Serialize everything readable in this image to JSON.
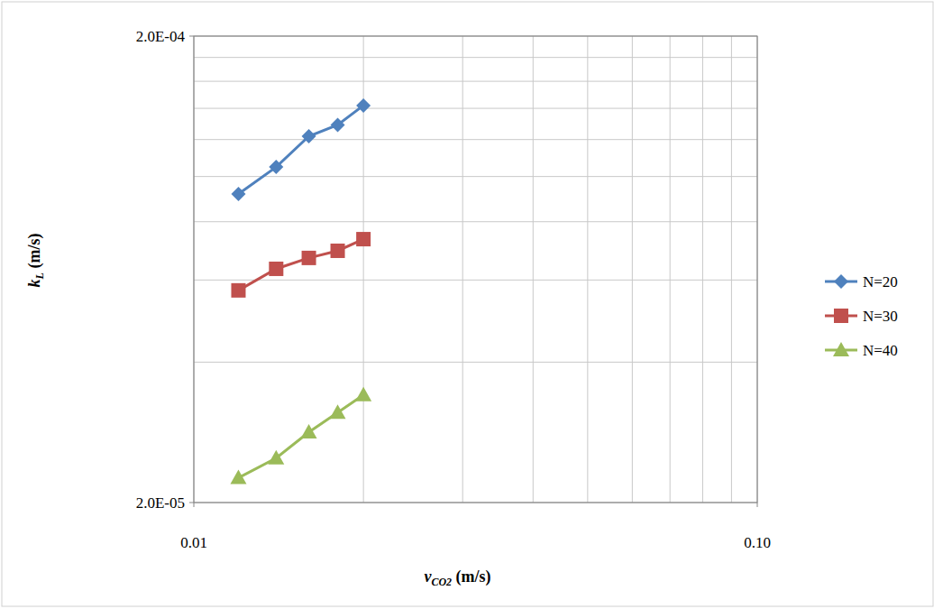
{
  "chart_data": {
    "type": "line",
    "x_label": "vCO2 (m/s)",
    "y_label": "kL (m/s)",
    "x": [
      0.012,
      0.014,
      0.016,
      0.018,
      0.02
    ],
    "series": [
      {
        "name": "N=20",
        "color": "#4f81bd",
        "marker": "diamond",
        "values": [
          9.17e-05,
          0.0001048,
          0.000122,
          0.000129,
          0.000142
        ]
      },
      {
        "name": "N=30",
        "color": "#c0504d",
        "marker": "square",
        "values": [
          5.7e-05,
          6.34e-05,
          6.69e-05,
          6.93e-05,
          7.34e-05
        ]
      },
      {
        "name": "N=40",
        "color": "#9bbb59",
        "marker": "triangle",
        "values": [
          2.26e-05,
          2.49e-05,
          2.83e-05,
          3.12e-05,
          3.4e-05
        ]
      }
    ],
    "xlim": [
      0.01,
      0.1
    ],
    "ylim": [
      2e-05,
      0.0002
    ],
    "xticks": [
      0.01,
      {
        "value": 0.1,
        "label": "0.10"
      }
    ],
    "yticks": [
      {
        "value": 2e-05,
        "label": "2.0E-05"
      },
      {
        "value": 0.0002,
        "label": "2.0E-04"
      }
    ],
    "log": true,
    "grid": true,
    "legend": "right"
  }
}
